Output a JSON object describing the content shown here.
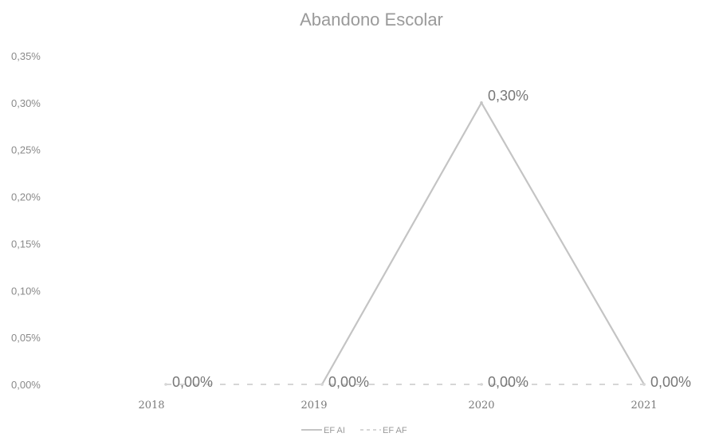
{
  "chart_data": {
    "type": "line",
    "title": "Abandono Escolar",
    "categories": [
      "2018",
      "2019",
      "2020",
      "2021"
    ],
    "y_ticks": [
      "0,00%",
      "0,05%",
      "0,10%",
      "0,15%",
      "0,20%",
      "0,25%",
      "0,30%",
      "0,35%"
    ],
    "ylim": [
      0,
      0.35
    ],
    "grid": false,
    "legend_position": "bottom",
    "series": [
      {
        "name": "EF AI",
        "values": [
          null,
          0.0,
          0.3,
          0.0
        ],
        "labels": [
          "",
          "",
          "0,30%",
          ""
        ],
        "color": "#c4c4c4",
        "style": "solid"
      },
      {
        "name": "EF AF",
        "values": [
          0.0,
          0.0,
          0.0,
          0.0
        ],
        "labels": [
          "0,00%",
          "0,00%",
          "0,00%",
          "0,00%"
        ],
        "color": "#d6d6d6",
        "style": "dashed"
      }
    ]
  }
}
